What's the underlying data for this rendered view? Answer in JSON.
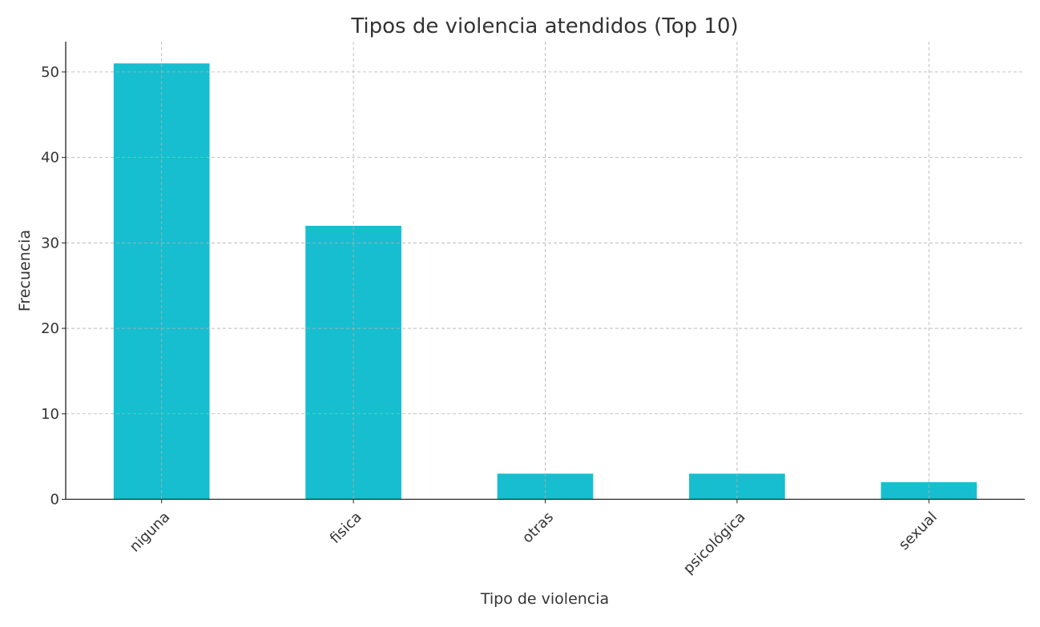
{
  "chart_data": {
    "type": "bar",
    "title": "Tipos de violencia atendidos (Top 10)",
    "xlabel": "Tipo de violencia",
    "ylabel": "Frecuencia",
    "categories": [
      "niguna",
      "fisica",
      "otras",
      "psicológica",
      "sexual"
    ],
    "values": [
      51,
      32,
      3,
      3,
      2
    ],
    "ylim": [
      0,
      53.55
    ],
    "yticks": [
      0,
      10,
      20,
      30,
      40,
      50
    ],
    "grid": true,
    "bar_color": "#17becf"
  }
}
